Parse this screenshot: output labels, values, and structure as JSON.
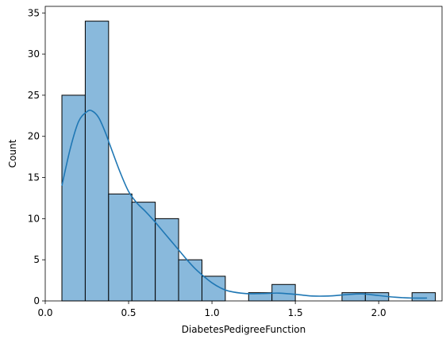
{
  "chart_data": {
    "type": "bar",
    "title": "",
    "xlabel": "DiabetesPedigreeFunction",
    "ylabel": "Count",
    "xlim": [
      0.0,
      2.38
    ],
    "ylim": [
      0,
      35.8
    ],
    "xticks": [
      0.0,
      0.5,
      1.0,
      1.5,
      2.0
    ],
    "xtick_labels": [
      "0.0",
      "0.5",
      "1.0",
      "1.5",
      "2.0"
    ],
    "yticks": [
      0,
      5,
      10,
      15,
      20,
      25,
      30,
      35
    ],
    "ytick_labels": [
      "0",
      "5",
      "10",
      "15",
      "20",
      "25",
      "30",
      "35"
    ],
    "grid": false,
    "legend": "none",
    "bin_edges": [
      0.1,
      0.24,
      0.38,
      0.52,
      0.66,
      0.8,
      0.94,
      1.08,
      1.22,
      1.36,
      1.5,
      1.64,
      1.78,
      1.92,
      2.06,
      2.2,
      2.34
    ],
    "counts": [
      25,
      34,
      13,
      12,
      10,
      5,
      3,
      0,
      1,
      2,
      0,
      0,
      1,
      1,
      0,
      1
    ],
    "kde": {
      "x": [
        0.1,
        0.15,
        0.2,
        0.25,
        0.28,
        0.32,
        0.36,
        0.4,
        0.45,
        0.5,
        0.55,
        0.6,
        0.65,
        0.7,
        0.75,
        0.8,
        0.85,
        0.9,
        0.95,
        1.0,
        1.05,
        1.1,
        1.2,
        1.3,
        1.4,
        1.5,
        1.6,
        1.7,
        1.8,
        1.9,
        2.0,
        2.1,
        2.2,
        2.29
      ],
      "y": [
        14.0,
        18.5,
        21.8,
        23.0,
        23.1,
        22.3,
        20.5,
        18.3,
        15.6,
        13.3,
        11.9,
        10.9,
        9.8,
        8.6,
        7.4,
        6.2,
        5.0,
        3.9,
        3.0,
        2.2,
        1.6,
        1.2,
        0.9,
        0.9,
        0.95,
        0.8,
        0.6,
        0.6,
        0.75,
        0.85,
        0.65,
        0.45,
        0.35,
        0.35
      ]
    },
    "colors": {
      "bar_fill": "#89b9dc",
      "bar_edge": "#000000",
      "kde_line": "#1f77b4"
    }
  }
}
